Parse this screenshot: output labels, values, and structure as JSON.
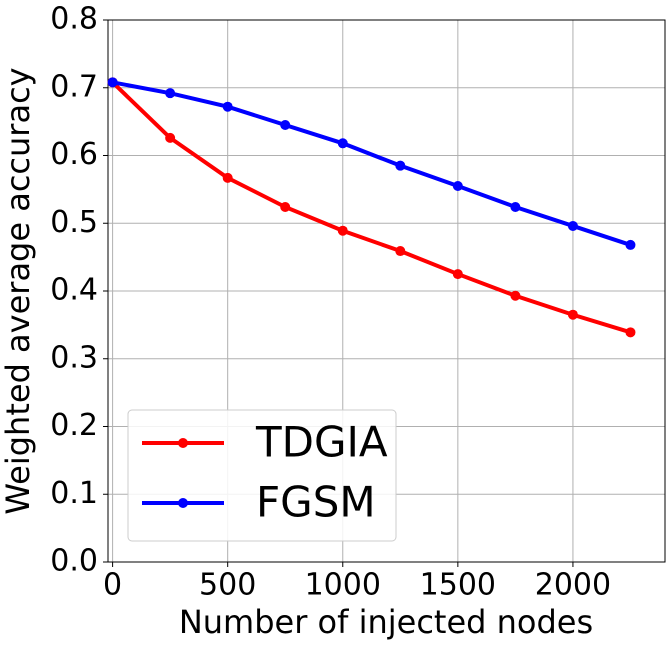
{
  "chart_data": {
    "type": "line",
    "x_label": "Number of injected nodes",
    "y_label": "Weighted average accuracy",
    "x": [
      0,
      250,
      500,
      750,
      1000,
      1250,
      1500,
      1750,
      2000,
      2250
    ],
    "series": [
      {
        "name": "TDGIA",
        "color": "#ff0000",
        "values": [
          0.708,
          0.626,
          0.567,
          0.524,
          0.489,
          0.459,
          0.425,
          0.393,
          0.365,
          0.339
        ]
      },
      {
        "name": "FGSM",
        "color": "#0000ff",
        "values": [
          0.708,
          0.692,
          0.672,
          0.645,
          0.618,
          0.585,
          0.555,
          0.524,
          0.496,
          0.468
        ]
      }
    ],
    "xlim": [
      -20,
      2400
    ],
    "xticks": [
      0,
      500,
      1000,
      1500,
      2000
    ],
    "ylim": [
      0,
      0.8
    ],
    "yticks": [
      {
        "value": 0,
        "label": "0.0"
      },
      0.1,
      0.2,
      0.3,
      0.4,
      0.5,
      0.6,
      0.7,
      {
        "value": 0.8,
        "label": "0.8"
      }
    ],
    "grid": true,
    "legend": "lower-left"
  }
}
